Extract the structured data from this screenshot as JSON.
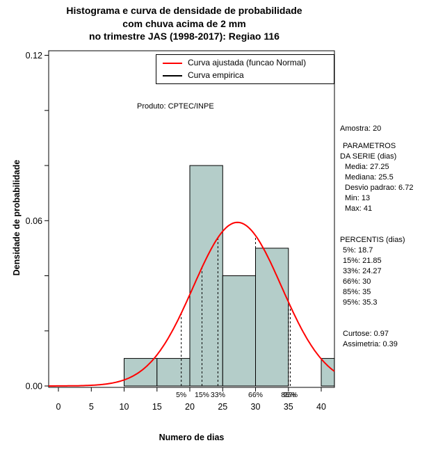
{
  "title": {
    "line1": "Histograma e curva de densidade de probabilidade",
    "line2": "com chuva acima de 2 mm",
    "line3": "no trimestre JAS (1998-2017): Regiao 116"
  },
  "annotation": "Produto: CPTEC/INPE",
  "legend": {
    "items": [
      {
        "label": "Curva ajustada (funcao Normal)",
        "color": "#ff0000"
      },
      {
        "label": "Curva empirica",
        "color": "#000000"
      }
    ]
  },
  "axes": {
    "x_label": "Numero de dias",
    "y_label": "Densidade de probabilidade",
    "x_ticks": [
      0,
      5,
      10,
      15,
      20,
      25,
      30,
      35,
      40
    ],
    "y_ticks": [
      0,
      0.02,
      0.04,
      0.06,
      0.08,
      0.1,
      0.12
    ],
    "y_tick_labeled": [
      {
        "value": 0,
        "label": "0.00"
      },
      {
        "value": 0.06,
        "label": "0.06"
      },
      {
        "value": 0.12,
        "label": "0.12"
      }
    ]
  },
  "stats_panel": {
    "sample": "Amostra: 20",
    "params_header": "PARAMETROS",
    "params_header2": "DA SERIE (dias)",
    "params": [
      "Media: 27.25",
      "Mediana: 25.5",
      "Desvio padrao: 6.72",
      "Min: 13",
      "Max: 41"
    ],
    "percentis_header": "PERCENTIS (dias)",
    "percentis": [
      "5%: 18.7",
      "15%: 21.85",
      "33%: 24.27",
      "66%: 30",
      "85%: 35",
      "95%: 35.3"
    ],
    "moments": [
      "Curtose: 0.97",
      "Assimetria: 0.39"
    ]
  },
  "chart_data": {
    "type": "bar",
    "subtype": "histogram-with-density-curve",
    "title": "Histograma e curva de densidade de probabilidade com chuva acima de 2 mm no trimestre JAS (1998-2017): Regiao 116",
    "xlabel": "Numero de dias",
    "ylabel": "Densidade de probabilidade",
    "xlim": [
      -1.5,
      42
    ],
    "ylim": [
      0,
      0.1216
    ],
    "grid": false,
    "legend_position": "top",
    "histogram": {
      "breaks": [
        10,
        15,
        20,
        25,
        30,
        35,
        40,
        45
      ],
      "densities": [
        0.01,
        0.01,
        0.08,
        0.04,
        0.05,
        0,
        0.01
      ],
      "fill": "#b4cdc9",
      "border": "#000000"
    },
    "normal_curve": {
      "mean": 27.25,
      "sd": 6.72,
      "color": "#ff0000",
      "label": "Curva ajustada (funcao Normal)"
    },
    "empirical_curve": {
      "color": "#000000",
      "label": "Curva empirica"
    },
    "percentiles": [
      {
        "label": "5%",
        "value": 18.7
      },
      {
        "label": "15%",
        "value": 21.85
      },
      {
        "label": "33%",
        "value": 24.27
      },
      {
        "label": "66%",
        "value": 30
      },
      {
        "label": "85%",
        "value": 35
      },
      {
        "label": "95%",
        "value": 35.3
      }
    ]
  }
}
